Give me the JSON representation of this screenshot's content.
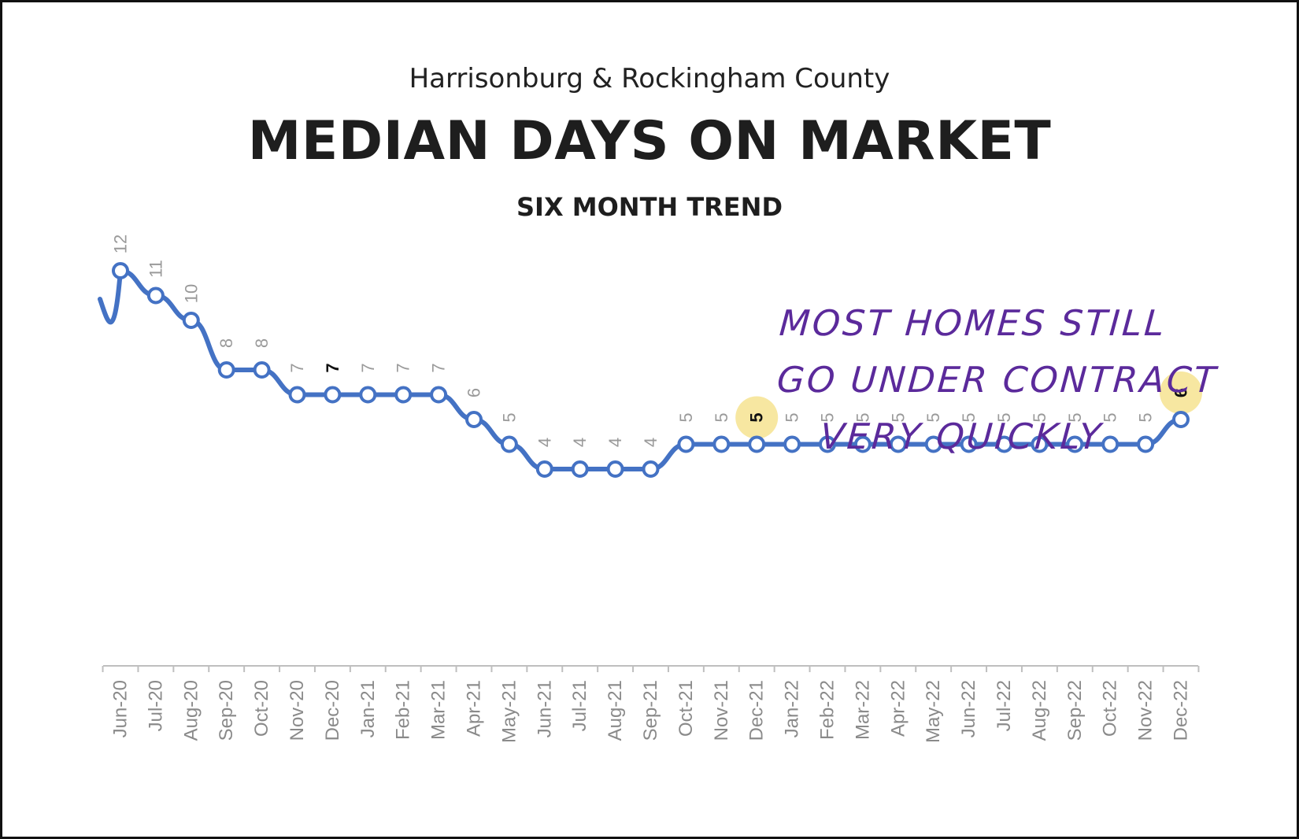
{
  "header": {
    "pre_title": "Harrisonburg & Rockingham County",
    "title": "MEDIAN DAYS ON MARKET",
    "subtitle": "SIX MONTH TREND"
  },
  "annotation": {
    "lines": [
      "MOST HOMES STILL",
      "GO UNDER CONTRACT",
      "VERY QUICKLY"
    ],
    "color": "#5b2a9b"
  },
  "chart_data": {
    "type": "line",
    "title": "MEDIAN DAYS ON MARKET",
    "subtitle": "SIX MONTH TREND",
    "xlabel": "",
    "ylabel": "",
    "categories": [
      "Jun-20",
      "Jul-20",
      "Aug-20",
      "Sep-20",
      "Oct-20",
      "Nov-20",
      "Dec-20",
      "Jan-21",
      "Feb-21",
      "Mar-21",
      "Apr-21",
      "May-21",
      "Jun-21",
      "Jul-21",
      "Aug-21",
      "Sep-21",
      "Oct-21",
      "Nov-21",
      "Dec-21",
      "Jan-22",
      "Feb-22",
      "Mar-22",
      "Apr-22",
      "May-22",
      "Jun-22",
      "Jul-22",
      "Aug-22",
      "Sep-22",
      "Oct-22",
      "Nov-22",
      "Dec-22"
    ],
    "series": [
      {
        "values": [
          12,
          11,
          10,
          8,
          8,
          7,
          7,
          7,
          7,
          7,
          6,
          5,
          4,
          4,
          4,
          4,
          5,
          5,
          5,
          5,
          5,
          5,
          5,
          5,
          5,
          5,
          5,
          5,
          5,
          5,
          6
        ],
        "color": "#4472c4"
      }
    ],
    "data_labels": [
      "12",
      "11",
      "10",
      "8",
      "8",
      "7",
      "7",
      "7",
      "7",
      "7",
      "6",
      "5",
      "4",
      "4",
      "4",
      "4",
      "5",
      "5",
      "5",
      "5",
      "5",
      "5",
      "5",
      "5",
      "5",
      "5",
      "5",
      "5",
      "5",
      "5",
      "6"
    ],
    "bold_labels": [
      "Dec-20"
    ],
    "highlighted_points": [
      "Dec-21",
      "Dec-22"
    ],
    "highlight_color": "#f7e7a1",
    "line_enters_from_above": true,
    "grid": false,
    "legend": "none"
  }
}
